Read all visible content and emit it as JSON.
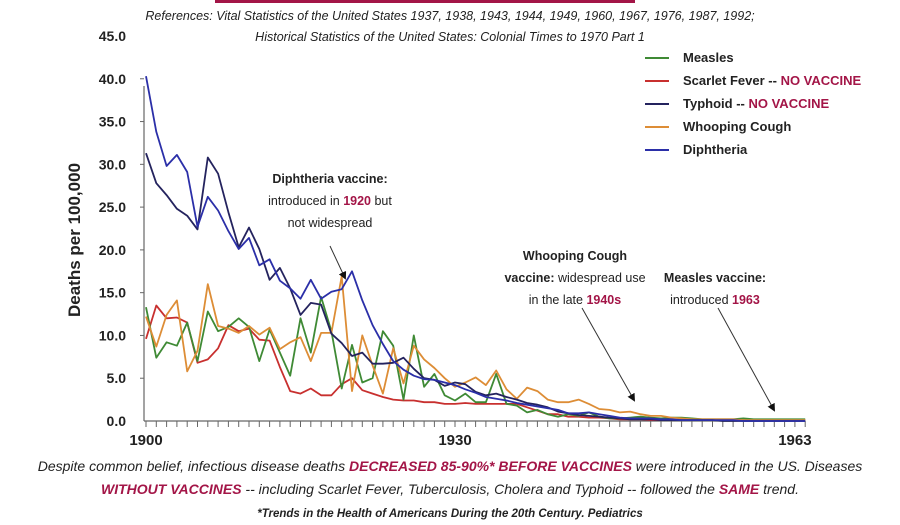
{
  "header": {
    "references_line1": "References: Vital Statistics of the United States 1937, 1938, 1943, 1944, 1949, 1960, 1967, 1976, 1987, 1992;",
    "references_line2": "Historical Statistics of the United States: Colonial Times to 1970 Part 1"
  },
  "colors": {
    "accent": "#a31547",
    "measles": "#3f8a35",
    "scarlet_fever": "#c8302f",
    "typhoid": "#24235e",
    "whooping_cough": "#dd8d36",
    "diphtheria": "#2b2fa8"
  },
  "chart_data": {
    "type": "line",
    "title": "",
    "xlabel": "",
    "ylabel": "Deaths per 100,000",
    "xlim": [
      1900,
      1964
    ],
    "ylim": [
      0,
      45
    ],
    "x_tick_labels": [
      "1900",
      "1930",
      "1963"
    ],
    "y_tick_labels": [
      "0.0",
      "5.0",
      "10.0",
      "15.0",
      "20.0",
      "25.0",
      "30.0",
      "35.0",
      "40.0",
      "45.0"
    ],
    "grid": false,
    "legend_position": "top-right",
    "legend": [
      {
        "label": "Measles",
        "suffix": "",
        "key": "measles"
      },
      {
        "label": "Scarlet Fever -- ",
        "suffix": "NO VACCINE",
        "key": "scarlet_fever"
      },
      {
        "label": "Typhoid -- ",
        "suffix": "NO VACCINE",
        "key": "typhoid"
      },
      {
        "label": "Whooping Cough",
        "suffix": "",
        "key": "whooping_cough"
      },
      {
        "label": "Diphtheria",
        "suffix": "",
        "key": "diphtheria"
      }
    ],
    "x": [
      1900,
      1901,
      1902,
      1903,
      1904,
      1905,
      1906,
      1907,
      1908,
      1909,
      1910,
      1911,
      1912,
      1913,
      1914,
      1915,
      1916,
      1917,
      1918,
      1919,
      1920,
      1921,
      1922,
      1923,
      1924,
      1925,
      1926,
      1927,
      1928,
      1929,
      1930,
      1931,
      1932,
      1933,
      1934,
      1935,
      1936,
      1937,
      1938,
      1939,
      1940,
      1941,
      1942,
      1943,
      1944,
      1945,
      1946,
      1947,
      1948,
      1949,
      1950,
      1951,
      1952,
      1953,
      1954,
      1955,
      1956,
      1957,
      1958,
      1959,
      1960,
      1961,
      1962,
      1963,
      1964
    ],
    "series": [
      {
        "name": "Measles",
        "key": "measles",
        "values": [
          13.3,
          7.4,
          9.2,
          8.8,
          11.5,
          7.0,
          12.8,
          10.5,
          11.0,
          12.0,
          11.0,
          7.0,
          10.7,
          8.0,
          5.3,
          12.0,
          8.0,
          14.5,
          10.5,
          3.8,
          8.9,
          4.5,
          5.0,
          10.5,
          8.8,
          2.5,
          10.0,
          4.0,
          5.5,
          3.0,
          2.4,
          3.2,
          2.2,
          2.2,
          5.5,
          2.0,
          1.8,
          1.0,
          1.3,
          0.8,
          0.5,
          0.8,
          0.6,
          1.0,
          0.5,
          0.3,
          0.3,
          0.4,
          0.5,
          0.4,
          0.3,
          0.4,
          0.4,
          0.3,
          0.2,
          0.2,
          0.2,
          0.2,
          0.3,
          0.2,
          0.2,
          0.2,
          0.2,
          0.2,
          0.2
        ]
      },
      {
        "name": "Scarlet Fever",
        "key": "scarlet_fever",
        "values": [
          9.6,
          13.5,
          12.0,
          12.1,
          11.5,
          6.8,
          7.2,
          8.5,
          11.2,
          10.5,
          10.8,
          9.5,
          9.4,
          6.3,
          3.5,
          3.2,
          3.8,
          3.0,
          3.0,
          4.3,
          5.0,
          3.6,
          3.2,
          2.8,
          2.5,
          2.4,
          2.4,
          2.2,
          2.2,
          2.0,
          2.0,
          2.1,
          2.0,
          2.0,
          2.0,
          2.0,
          2.0,
          1.6,
          1.2,
          0.8,
          0.8,
          0.5,
          0.5,
          0.4,
          0.4,
          0.3,
          0.2,
          0.2,
          0.2,
          0.1,
          0.1,
          0.1,
          0.1,
          0.1,
          0.1,
          0.1,
          0.1,
          0.1,
          0.1,
          0.1,
          0.1,
          0.1,
          0.1,
          0.1,
          0.1
        ]
      },
      {
        "name": "Typhoid",
        "key": "typhoid",
        "values": [
          31.3,
          27.8,
          26.4,
          24.8,
          24.0,
          22.4,
          30.8,
          28.9,
          24.4,
          20.3,
          22.6,
          20.1,
          16.5,
          17.9,
          15.5,
          12.4,
          13.8,
          13.6,
          10.2,
          9.1,
          7.6,
          8.0,
          6.7,
          6.7,
          6.8,
          7.4,
          6.1,
          5.0,
          4.8,
          4.1,
          4.5,
          4.3,
          3.4,
          3.0,
          3.2,
          2.8,
          2.5,
          2.1,
          1.9,
          1.6,
          1.1,
          0.9,
          0.7,
          0.6,
          0.5,
          0.4,
          0.3,
          0.2,
          0.2,
          0.2,
          0.1,
          0.1,
          0.1,
          0.1,
          0.1,
          0.1,
          0.0,
          0.0,
          0.0,
          0.0,
          0.0,
          0.0,
          0.0,
          0.0,
          0.0
        ]
      },
      {
        "name": "Whooping Cough",
        "key": "whooping_cough",
        "values": [
          12.2,
          8.7,
          12.4,
          14.1,
          5.8,
          8.2,
          16.0,
          11.1,
          10.8,
          10.3,
          11.1,
          10.1,
          10.9,
          8.4,
          9.2,
          9.8,
          7.0,
          10.3,
          10.3,
          16.9,
          3.5,
          10.0,
          6.5,
          3.2,
          8.5,
          4.4,
          8.8,
          7.2,
          6.2,
          5.0,
          4.0,
          4.5,
          5.1,
          4.2,
          5.9,
          3.7,
          2.6,
          3.9,
          3.5,
          2.5,
          2.2,
          2.2,
          2.5,
          2.0,
          1.4,
          1.3,
          1.0,
          1.1,
          0.8,
          0.6,
          0.6,
          0.4,
          0.3,
          0.2,
          0.2,
          0.2,
          0.2,
          0.2,
          0.1,
          0.1,
          0.1,
          0.1,
          0.1,
          0.1,
          0.1
        ]
      },
      {
        "name": "Diphtheria",
        "key": "diphtheria",
        "values": [
          40.3,
          33.8,
          29.8,
          31.1,
          29.1,
          22.7,
          26.2,
          24.6,
          22.2,
          20.1,
          21.4,
          18.2,
          18.9,
          16.4,
          15.5,
          14.3,
          16.5,
          14.3,
          15.1,
          15.4,
          17.5,
          14.1,
          11.2,
          9.0,
          7.0,
          6.0,
          5.3,
          4.9,
          4.8,
          4.5,
          4.2,
          3.7,
          3.3,
          2.8,
          2.6,
          2.4,
          2.1,
          1.9,
          1.7,
          1.5,
          1.3,
          0.9,
          0.9,
          1.0,
          0.8,
          0.6,
          0.4,
          0.3,
          0.3,
          0.3,
          0.2,
          0.2,
          0.1,
          0.1,
          0.1,
          0.1,
          0.1,
          0.1,
          0.0,
          0.0,
          0.0,
          0.0,
          0.0,
          0.0,
          0.0
        ]
      }
    ],
    "annotations": [
      {
        "title": "Diphtheria vaccine:",
        "text_before": "introduced in ",
        "highlight": "1920",
        "text_after": " but",
        "line3": "not widespread",
        "year": 1920
      },
      {
        "title": "Whooping Cough",
        "title2": "vaccine:",
        "text_before": " widespread use",
        "line3_before": "in the late ",
        "highlight": "1940s",
        "year": 1948
      },
      {
        "title": "Measles vaccine:",
        "text_before": "introduced ",
        "highlight": "1963",
        "year": 1963
      }
    ]
  },
  "footer": {
    "line1_a": "Despite common belief, infectious disease deaths ",
    "line1_b": "DECREASED 85-90%* BEFORE VACCINES",
    "line1_c": " were introduced in the US. Diseases",
    "line2_a": "WITHOUT VACCINES",
    "line2_b": " -- including Scarlet Fever, Tuberculosis, Cholera and Typhoid -- followed the ",
    "line2_c": "SAME",
    "line2_d": " trend.",
    "citation": "*Trends in the Health of Americans During the 20th Century. Pediatrics"
  }
}
